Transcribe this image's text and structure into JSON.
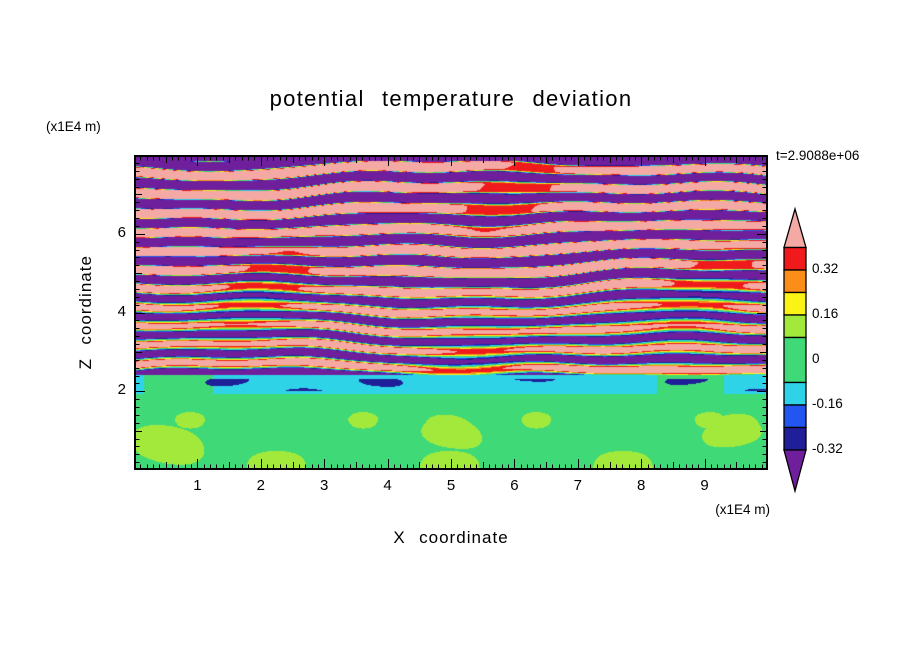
{
  "title": "potential temperature deviation",
  "time_label": "t=2.9088e+06",
  "axes": {
    "x": {
      "label": "X coordinate",
      "unit": "(x1E4 m)",
      "min": 0,
      "max": 10,
      "major_ticks": [
        "1",
        "2",
        "3",
        "4",
        "5",
        "6",
        "7",
        "8",
        "9"
      ],
      "minor_tick_step": 0.1
    },
    "z": {
      "label": "Z coordinate",
      "unit": "(x1E4 m)",
      "min": 0,
      "max": 8,
      "major_ticks": [
        "2",
        "4",
        "6"
      ],
      "minor_tick_step": 0.2
    }
  },
  "colorbar": {
    "tick_labels": [
      "0.32",
      "0.16",
      "0",
      "-0.16",
      "-0.32"
    ],
    "tick_values": [
      0.32,
      0.16,
      0,
      -0.16,
      -0.32
    ],
    "over_color": "#F5A9A4",
    "under_color": "#701F9C",
    "segments_top_to_bottom": [
      {
        "from": 0.4,
        "to": 0.32,
        "color": "#F0191C"
      },
      {
        "from": 0.32,
        "to": 0.24,
        "color": "#FA8E18"
      },
      {
        "from": 0.24,
        "to": 0.16,
        "color": "#FBF316"
      },
      {
        "from": 0.16,
        "to": 0.08,
        "color": "#A2E93C"
      },
      {
        "from": 0.08,
        "to": -0.08,
        "color": "#3FD977"
      },
      {
        "from": -0.08,
        "to": -0.16,
        "color": "#2FD3E8"
      },
      {
        "from": -0.16,
        "to": -0.24,
        "color": "#2356F0"
      },
      {
        "from": -0.24,
        "to": -0.32,
        "color": "#1F1F99"
      }
    ]
  },
  "chart_data": {
    "type": "heatmap",
    "subtype": "filled_contour",
    "title": "potential temperature deviation",
    "annotation": "t=2.9088e+06",
    "xlabel": "X coordinate",
    "x_unit": "(x1E4 m)",
    "x_range": [
      0,
      10
    ],
    "zlabel": "Z coordinate",
    "z_unit": "(x1E4 m)",
    "z_range": [
      0,
      8
    ],
    "contour_levels": [
      -0.32,
      -0.24,
      -0.16,
      -0.08,
      0.08,
      0.16,
      0.24,
      0.32,
      0.4
    ],
    "band_colors_low_to_high": [
      "#701F9C",
      "#1F1F99",
      "#2356F0",
      "#2FD3E8",
      "#3FD977",
      "#A2E93C",
      "#FBF316",
      "#FA8E18",
      "#F0191C",
      "#F5A9A4"
    ],
    "band_color_meaning": "first color = below lowest level (purple), last = above highest level (salmon)",
    "regions": [
      {
        "z_range": [
          2.45,
          8.0
        ],
        "value_range": [
          -0.7,
          0.7
        ],
        "description": "stacked wavy horizontal gravity-wave layers alternating salmon (>0.4) and dark purple (<-0.32) with thin red/orange/yellow/cyan/blue fringes; layers more broken and multicolored between z=2.5 and z=4.5"
      },
      {
        "z_range": [
          1.95,
          2.45
        ],
        "value_range": [
          -0.16,
          -0.07
        ],
        "description": "nearly uniform cyan band (~ -0.12) with intermittent thin navy streaks"
      },
      {
        "z_range": [
          0.0,
          1.95
        ],
        "value_range": [
          -0.05,
          0.13
        ],
        "description": "green background near 0 with large chartreuse patches (0.08 to 0.16) concentrated toward the bottom"
      },
      {
        "z_range": [
          7.85,
          8.0
        ],
        "value_range": [
          -0.5,
          -0.4
        ],
        "description": "thin dark purple strip along the top edge"
      }
    ],
    "grid": false,
    "legend_position": "right-colorbar"
  }
}
